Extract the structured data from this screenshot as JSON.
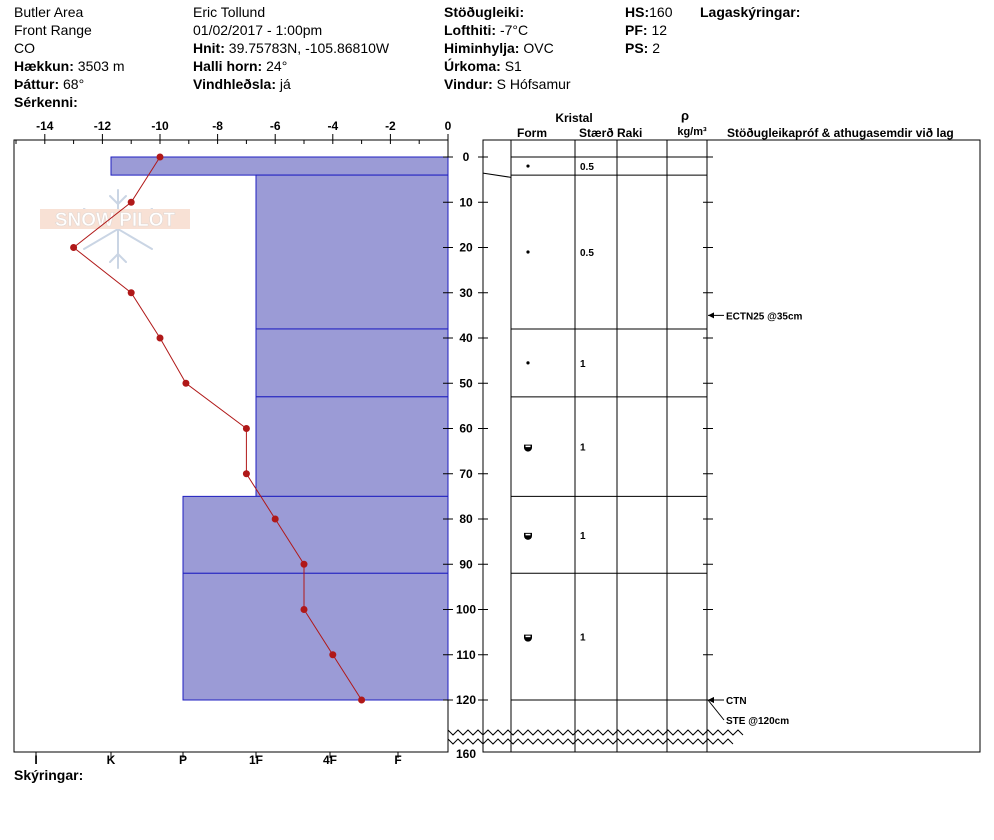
{
  "header": {
    "location": "Butler Area",
    "range": "Front Range",
    "state": "CO",
    "elevation": {
      "label": "Hækkun:",
      "value": "3503 m"
    },
    "aspect": {
      "label": "Þáttur:",
      "value": "68°"
    },
    "specifics": {
      "label": "Sérkenni:",
      "value": ""
    },
    "observer": "Eric Tollund",
    "datetime": "01/02/2017 - 1:00pm",
    "coords": {
      "label": "Hnit:",
      "value": "39.75783N, -105.86810W"
    },
    "slope": {
      "label": "Halli horn:",
      "value": "24°"
    },
    "wind_loading": {
      "label": "Vindhleðsla:",
      "value": "já"
    },
    "stability": {
      "label": "Stöðugleiki:",
      "value": ""
    },
    "air_temp": {
      "label": "Lofthiti:",
      "value": "-7°C"
    },
    "sky": {
      "label": "Himinhylja:",
      "value": "OVC"
    },
    "precip": {
      "label": "Úrkoma:",
      "value": "S1"
    },
    "wind": {
      "label": "Vindur:",
      "value": "S Hófsamur"
    },
    "hs": {
      "label": "HS:",
      "value": "160"
    },
    "pf": {
      "label": "PF:",
      "value": "12"
    },
    "ps": {
      "label": "PS:",
      "value": "2"
    },
    "layer_notes": {
      "label": "Lagaskýringar:",
      "value": ""
    }
  },
  "footer": {
    "notes_label": "Skýringar:"
  },
  "watermark": "SNOW PILOT",
  "columns": {
    "crystal": "Kristal",
    "form": "Form",
    "size": "Stærð",
    "moisture": "Raki",
    "rho": "ρ",
    "density_unit": "kg/m³",
    "tests": "Stöðugleikapróf & athugasemdir við lag"
  },
  "chart_data": {
    "type": "snow-profile",
    "temp_axis": {
      "min": -15,
      "max": 0,
      "ticks": [
        -14,
        -12,
        -10,
        -8,
        -6,
        -4,
        -2,
        0
      ]
    },
    "depth_axis": {
      "min": 0,
      "max": 160,
      "ticks": [
        0,
        10,
        20,
        30,
        40,
        50,
        60,
        70,
        80,
        90,
        100,
        110,
        120
      ],
      "bottom_label": "160"
    },
    "hardness_labels": [
      "I",
      "K",
      "P",
      "1F",
      "4F",
      "F"
    ],
    "temperature_profile": [
      {
        "depth": 0,
        "temp": -10.0
      },
      {
        "depth": 10,
        "temp": -11.0
      },
      {
        "depth": 20,
        "temp": -13.0
      },
      {
        "depth": 30,
        "temp": -11.0
      },
      {
        "depth": 40,
        "temp": -10.0
      },
      {
        "depth": 50,
        "temp": -9.1
      },
      {
        "depth": 60,
        "temp": -7.0
      },
      {
        "depth": 70,
        "temp": -7.0
      },
      {
        "depth": 80,
        "temp": -6.0
      },
      {
        "depth": 90,
        "temp": -5.0
      },
      {
        "depth": 100,
        "temp": -5.0
      },
      {
        "depth": 110,
        "temp": -4.0
      },
      {
        "depth": 120,
        "temp": -3.0
      }
    ],
    "layers": [
      {
        "top": 0,
        "bottom": 4,
        "hardness": "K",
        "grain": "dot",
        "size": "0.5"
      },
      {
        "top": 4,
        "bottom": 38,
        "hardness": "1F",
        "grain": "dot",
        "size": "0.5"
      },
      {
        "top": 38,
        "bottom": 53,
        "hardness": "1F",
        "grain": "dot",
        "size": "1"
      },
      {
        "top": 53,
        "bottom": 75,
        "hardness": "1F",
        "grain": "rounded-facet",
        "size": "1"
      },
      {
        "top": 75,
        "bottom": 92,
        "hardness": "P",
        "grain": "rounded-facet",
        "size": "1"
      },
      {
        "top": 92,
        "bottom": 120,
        "hardness": "P",
        "grain": "rounded-facet",
        "size": "1"
      }
    ],
    "tests": [
      {
        "depth": 35,
        "label": "ECTN25 @35cm"
      },
      {
        "depth": 120,
        "label": "CTN"
      },
      {
        "depth": 120,
        "label": "STE @120cm"
      }
    ]
  }
}
